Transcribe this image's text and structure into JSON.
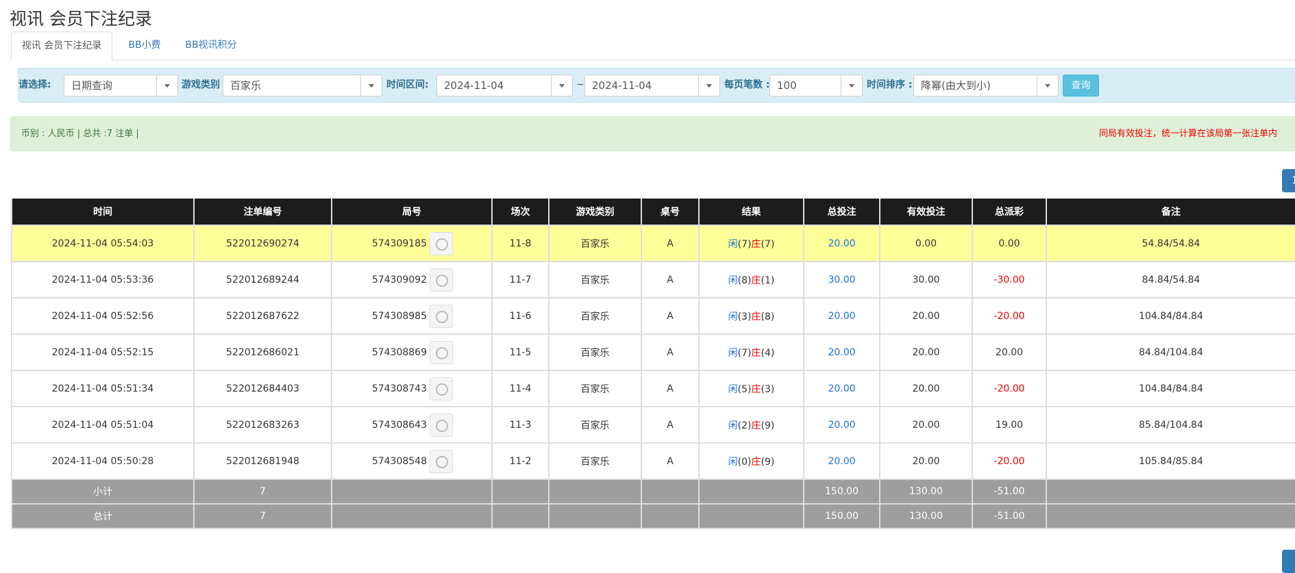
{
  "header": {
    "title": "视讯 会员下注纪录"
  },
  "tabs": [
    "视讯 会员下注纪录",
    "BB小费",
    "BB视讯积分"
  ],
  "filters": [
    {
      "label": "请选择:",
      "value": "日期查询"
    },
    {
      "label": "游戏类别",
      "value": "百家乐"
    },
    {
      "label": "时间区间:",
      "value": "2024-11-04"
    },
    {
      "label": "~",
      "value": "2024-11-04"
    },
    {
      "label": "每页笔数 :",
      "value": "100"
    },
    {
      "label": "时间排序 :",
      "value": "降幂(由大到小)"
    }
  ],
  "query_button": "查询",
  "summary": {
    "info": "币别 : 人民币 | 总共 :7 注单 |",
    "notice": "同局有效投注，统一计算在该局第一张注单内"
  },
  "pagination": {
    "current": "1"
  },
  "table": {
    "columns": [
      "时间",
      "注单编号",
      "局号",
      "场次",
      "游戏类别",
      "桌号",
      "结果",
      "总投注",
      "有效投注",
      "总派彩",
      "备注"
    ],
    "rows": [
      [
        "2024-11-04 05:54:03",
        "522012690274",
        "574309185",
        "11-8",
        "百家乐",
        "A",
        [
          "闲",
          "(7)",
          "庄",
          "(7)"
        ],
        "20.00",
        "0.00",
        "0.00",
        "54.84/54.84"
      ],
      [
        "2024-11-04 05:53:36",
        "522012689244",
        "574309092",
        "11-7",
        "百家乐",
        "A",
        [
          "闲",
          "(8)",
          "庄",
          "(1)"
        ],
        "30.00",
        "30.00",
        "-30.00",
        "84.84/54.84"
      ],
      [
        "2024-11-04 05:52:56",
        "522012687622",
        "574308985",
        "11-6",
        "百家乐",
        "A",
        [
          "闲",
          "(3)",
          "庄",
          "(8)"
        ],
        "20.00",
        "20.00",
        "-20.00",
        "104.84/84.84"
      ],
      [
        "2024-11-04 05:52:15",
        "522012686021",
        "574308869",
        "11-5",
        "百家乐",
        "A",
        [
          "闲",
          "(7)",
          "庄",
          "(4)"
        ],
        "20.00",
        "20.00",
        "20.00",
        "84.84/104.84"
      ],
      [
        "2024-11-04 05:51:34",
        "522012684403",
        "574308743",
        "11-4",
        "百家乐",
        "A",
        [
          "闲",
          "(5)",
          "庄",
          "(3)"
        ],
        "20.00",
        "20.00",
        "-20.00",
        "104.84/84.84"
      ],
      [
        "2024-11-04 05:51:04",
        "522012683263",
        "574308643",
        "11-3",
        "百家乐",
        "A",
        [
          "闲",
          "(2)",
          "庄",
          "(9)"
        ],
        "20.00",
        "20.00",
        "19.00",
        "85.84/104.84"
      ],
      [
        "2024-11-04 05:50:28",
        "522012681948",
        "574308548",
        "11-2",
        "百家乐",
        "A",
        [
          "闲",
          "(0)",
          "庄",
          "(9)"
        ],
        "20.00",
        "20.00",
        "-20.00",
        "105.84/85.84"
      ]
    ],
    "subtotal": [
      "小计",
      "7",
      "150.00",
      "130.00",
      "-51.00"
    ],
    "total": [
      "总计",
      "7",
      "150.00",
      "130.00",
      "-51.00"
    ]
  }
}
